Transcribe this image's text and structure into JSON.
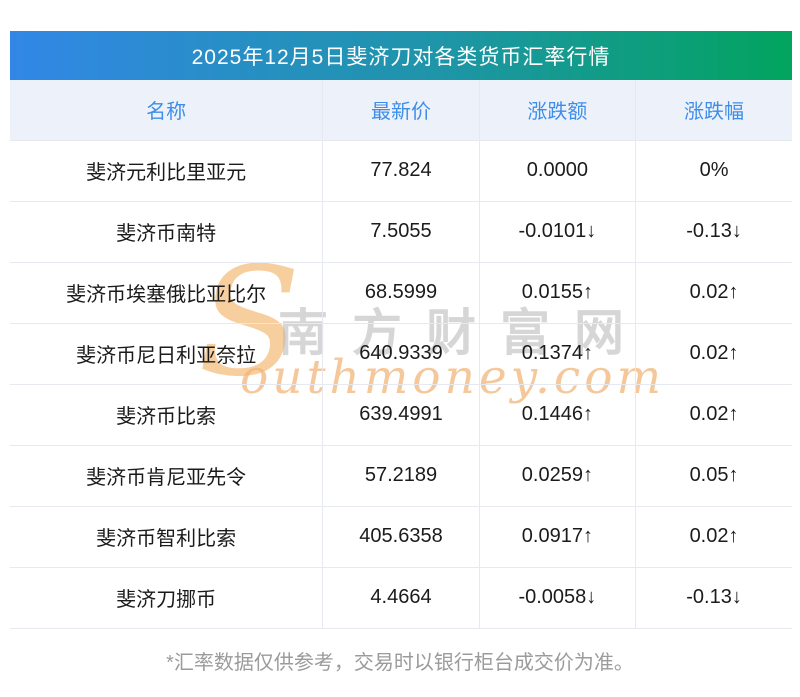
{
  "banner": {
    "title": "2025年12月5日斐济刀对各类货币汇率行情"
  },
  "table": {
    "columns": [
      "名称",
      "最新价",
      "涨跌额",
      "涨跌幅"
    ],
    "rows": [
      {
        "name": "斐济元利比里亚元",
        "price": "77.824",
        "change": "0.0000",
        "pct": "0%",
        "trend": "flat"
      },
      {
        "name": "斐济币南特",
        "price": "7.5055",
        "change": "-0.0101↓",
        "pct": "-0.13↓",
        "trend": "down"
      },
      {
        "name": "斐济币埃塞俄比亚比尔",
        "price": "68.5999",
        "change": "0.0155↑",
        "pct": "0.02↑",
        "trend": "up"
      },
      {
        "name": "斐济币尼日利亚奈拉",
        "price": "640.9339",
        "change": "0.1374↑",
        "pct": "0.02↑",
        "trend": "up"
      },
      {
        "name": "斐济币比索",
        "price": "639.4991",
        "change": "0.1446↑",
        "pct": "0.02↑",
        "trend": "up"
      },
      {
        "name": "斐济币肯尼亚先令",
        "price": "57.2189",
        "change": "0.0259↑",
        "pct": "0.05↑",
        "trend": "up"
      },
      {
        "name": "斐济币智利比索",
        "price": "405.6358",
        "change": "0.0917↑",
        "pct": "0.02↑",
        "trend": "up"
      },
      {
        "name": "斐济刀挪币",
        "price": "4.4664",
        "change": "-0.0058↓",
        "pct": "-0.13↓",
        "trend": "down"
      }
    ]
  },
  "watermark": {
    "s_letter": "S",
    "cn_text": "南方财富网",
    "en_text": "outhmoney.com"
  },
  "footer": {
    "disclaimer": "*汇率数据仅供参考，交易时以银行柜台成交价为准。"
  },
  "colors": {
    "banner_gradient_start": "#3287E6",
    "banner_gradient_end": "#02A45F",
    "header_bg": "#EDF2FA",
    "header_text": "#3E8EE9",
    "up_red": "#F70D0D",
    "down_green": "#0B8F0B",
    "flat_black": "#1b1b1b",
    "grid_line": "#E6E9F0",
    "footer_gray": "#9B9B9B"
  },
  "chart_data": {
    "type": "table",
    "title": "2025年12月5日斐济刀对各类货币汇率行情",
    "columns": [
      "名称",
      "最新价",
      "涨跌额",
      "涨跌幅"
    ],
    "rows": [
      [
        "斐济元利比里亚元",
        77.824,
        0.0,
        "0%"
      ],
      [
        "斐济币南特",
        7.5055,
        -0.0101,
        "-0.13"
      ],
      [
        "斐济币埃塞俄比亚比尔",
        68.5999,
        0.0155,
        "0.02"
      ],
      [
        "斐济币尼日利亚奈拉",
        640.9339,
        0.1374,
        "0.02"
      ],
      [
        "斐济币比索",
        639.4991,
        0.1446,
        "0.02"
      ],
      [
        "斐济币肯尼亚先令",
        57.2189,
        0.0259,
        "0.05"
      ],
      [
        "斐济币智利比索",
        405.6358,
        0.0917,
        "0.02"
      ],
      [
        "斐济刀挪币",
        4.4664,
        -0.0058,
        "-0.13"
      ]
    ]
  }
}
